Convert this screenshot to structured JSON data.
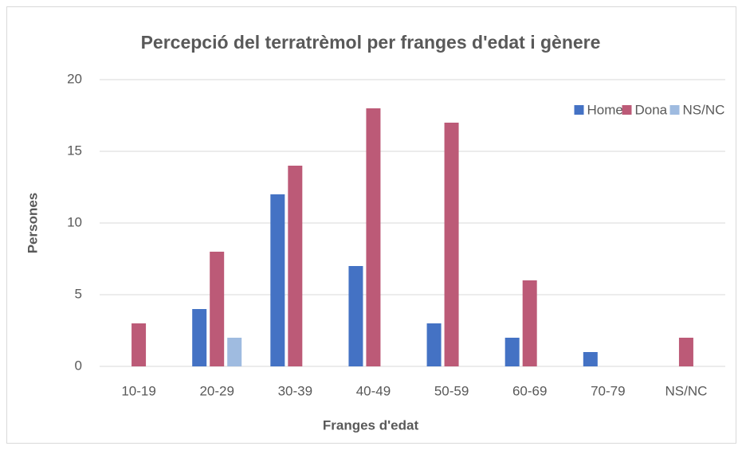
{
  "chart_data": {
    "type": "bar",
    "title": "Percepció del terratrèmol per franges d'edat i gènere",
    "x_label": "Franges d'edat",
    "y_label": "Persones",
    "categories": [
      "10-19",
      "20-29",
      "30-39",
      "40-49",
      "50-59",
      "60-69",
      "70-79",
      "NS/NC"
    ],
    "series": [
      {
        "name": "Home",
        "color": "#4472c4",
        "values": [
          0,
          4,
          12,
          7,
          3,
          2,
          1,
          0
        ]
      },
      {
        "name": "Dona",
        "color": "#bc5a77",
        "values": [
          3,
          8,
          14,
          18,
          17,
          6,
          0,
          2
        ]
      },
      {
        "name": "NS/NC",
        "color": "#9fbbe0",
        "values": [
          0,
          2,
          0,
          0,
          0,
          0,
          0,
          0
        ]
      }
    ],
    "ylim": [
      0,
      20
    ],
    "yticks": [
      0,
      5,
      10,
      15,
      20
    ],
    "grid": true,
    "legend": "top-right"
  }
}
